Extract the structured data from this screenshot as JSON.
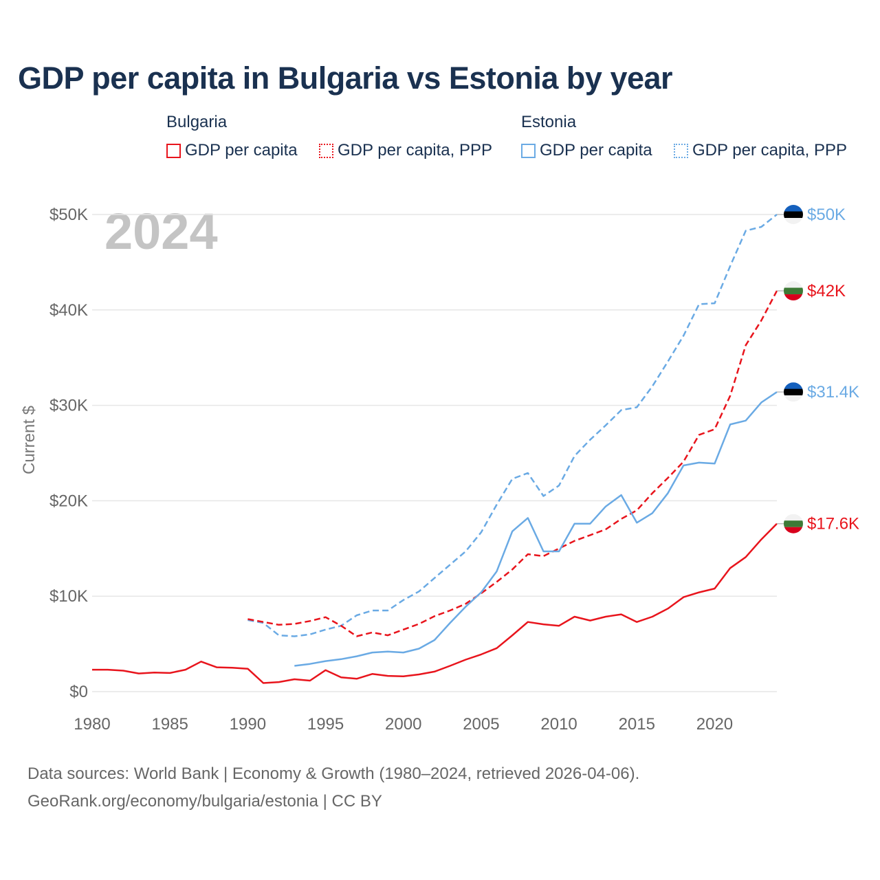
{
  "title": "GDP per capita in Bulgaria vs Estonia by year",
  "legend": {
    "groups": [
      {
        "name": "Bulgaria",
        "items": [
          {
            "label": "GDP per capita",
            "style": "solid",
            "color": "#e8141c"
          },
          {
            "label": "GDP per capita, PPP",
            "style": "dotted",
            "color": "#e8141c"
          }
        ]
      },
      {
        "name": "Estonia",
        "items": [
          {
            "label": "GDP per capita",
            "style": "solid",
            "color": "#6aaae4"
          },
          {
            "label": "GDP per capita, PPP",
            "style": "dotted",
            "color": "#6aaae4"
          }
        ]
      }
    ]
  },
  "footer": {
    "line1": "Data sources: World Bank | Economy & Growth (1980–2024, retrieved 2026-04-06).",
    "line2": "GeoRank.org/economy/bulgaria/estonia | CC BY"
  },
  "chart_data": {
    "type": "line",
    "title": "GDP per capita in Bulgaria vs Estonia by year",
    "ylabel": "Current $",
    "xlabel": "",
    "year_label": "2024",
    "xlim": [
      1980,
      2024
    ],
    "ylim": [
      0,
      50000
    ],
    "x_ticks": [
      1980,
      1985,
      1990,
      1995,
      2000,
      2005,
      2010,
      2015,
      2020
    ],
    "x_tick_labels": [
      "1980",
      "1985",
      "1990",
      "1995",
      "2000",
      "2005",
      "2010",
      "2015",
      "2020"
    ],
    "y_ticks": [
      0,
      10000,
      20000,
      30000,
      40000,
      50000
    ],
    "y_tick_labels": [
      "$0",
      "$10K",
      "$20K",
      "$30K",
      "$40K",
      "$50K"
    ],
    "grid": true,
    "series": [
      {
        "name": "Estonia GDP per capita, PPP",
        "country": "Estonia",
        "color": "#6aaae4",
        "dashed": true,
        "x": [
          1990,
          1991,
          1992,
          1993,
          1994,
          1995,
          1996,
          1997,
          1998,
          1999,
          2000,
          2001,
          2002,
          2003,
          2004,
          2005,
          2006,
          2007,
          2008,
          2009,
          2010,
          2011,
          2012,
          2013,
          2014,
          2015,
          2016,
          2017,
          2018,
          2019,
          2020,
          2021,
          2022,
          2023,
          2024
        ],
        "values": [
          7500,
          7200,
          5900,
          5800,
          6000,
          6500,
          6900,
          8000,
          8500,
          8500,
          9600,
          10500,
          11900,
          13300,
          14700,
          16700,
          19600,
          22300,
          22900,
          20500,
          21600,
          24700,
          26400,
          27900,
          29500,
          29800,
          32000,
          34600,
          37300,
          40600,
          40700,
          44600,
          48300,
          48700,
          50000
        ],
        "end_label": "$50K"
      },
      {
        "name": "Bulgaria GDP per capita, PPP",
        "country": "Bulgaria",
        "color": "#e8141c",
        "dashed": true,
        "x": [
          1990,
          1991,
          1992,
          1993,
          1994,
          1995,
          1996,
          1997,
          1998,
          1999,
          2000,
          2001,
          2002,
          2003,
          2004,
          2005,
          2006,
          2007,
          2008,
          2009,
          2010,
          2011,
          2012,
          2013,
          2014,
          2015,
          2016,
          2017,
          2018,
          2019,
          2020,
          2021,
          2022,
          2023,
          2024
        ],
        "values": [
          7600,
          7300,
          7000,
          7100,
          7400,
          7800,
          6900,
          5800,
          6200,
          5900,
          6500,
          7100,
          7900,
          8500,
          9200,
          10300,
          11500,
          12800,
          14400,
          14200,
          15000,
          15800,
          16400,
          17000,
          18100,
          19000,
          20800,
          22400,
          24100,
          26900,
          27500,
          31000,
          36300,
          38900,
          42000
        ],
        "end_label": "$42K"
      },
      {
        "name": "Estonia GDP per capita",
        "country": "Estonia",
        "color": "#6aaae4",
        "dashed": false,
        "x": [
          1993,
          1994,
          1995,
          1996,
          1997,
          1998,
          1999,
          2000,
          2001,
          2002,
          2003,
          2004,
          2005,
          2006,
          2007,
          2008,
          2009,
          2010,
          2011,
          2012,
          2013,
          2014,
          2015,
          2016,
          2017,
          2018,
          2019,
          2020,
          2021,
          2022,
          2023,
          2024
        ],
        "values": [
          2700,
          2900,
          3200,
          3400,
          3700,
          4100,
          4200,
          4100,
          4500,
          5400,
          7200,
          8900,
          10400,
          12600,
          16800,
          18200,
          14700,
          14700,
          17600,
          17600,
          19400,
          20600,
          17700,
          18700,
          20800,
          23700,
          24000,
          23900,
          28000,
          28400,
          30300,
          31400
        ],
        "end_label": "$31.4K"
      },
      {
        "name": "Bulgaria GDP per capita",
        "country": "Bulgaria",
        "color": "#e8141c",
        "dashed": false,
        "x": [
          1980,
          1981,
          1982,
          1983,
          1984,
          1985,
          1986,
          1987,
          1988,
          1989,
          1990,
          1991,
          1992,
          1993,
          1994,
          1995,
          1996,
          1997,
          1998,
          1999,
          2000,
          2001,
          2002,
          2003,
          2004,
          2005,
          2006,
          2007,
          2008,
          2009,
          2010,
          2011,
          2012,
          2013,
          2014,
          2015,
          2016,
          2017,
          2018,
          2019,
          2020,
          2021,
          2022,
          2023,
          2024
        ],
        "values": [
          2300,
          2300,
          2200,
          1900,
          2000,
          1950,
          2300,
          3150,
          2550,
          2500,
          2400,
          900,
          1000,
          1300,
          1150,
          2250,
          1500,
          1350,
          1850,
          1650,
          1600,
          1800,
          2100,
          2700,
          3350,
          3900,
          4550,
          5900,
          7300,
          7050,
          6900,
          7850,
          7450,
          7850,
          8100,
          7300,
          7850,
          8700,
          9900,
          10400,
          10800,
          12950,
          14100,
          15950,
          17600
        ],
        "end_label": "$17.6K"
      }
    ]
  }
}
